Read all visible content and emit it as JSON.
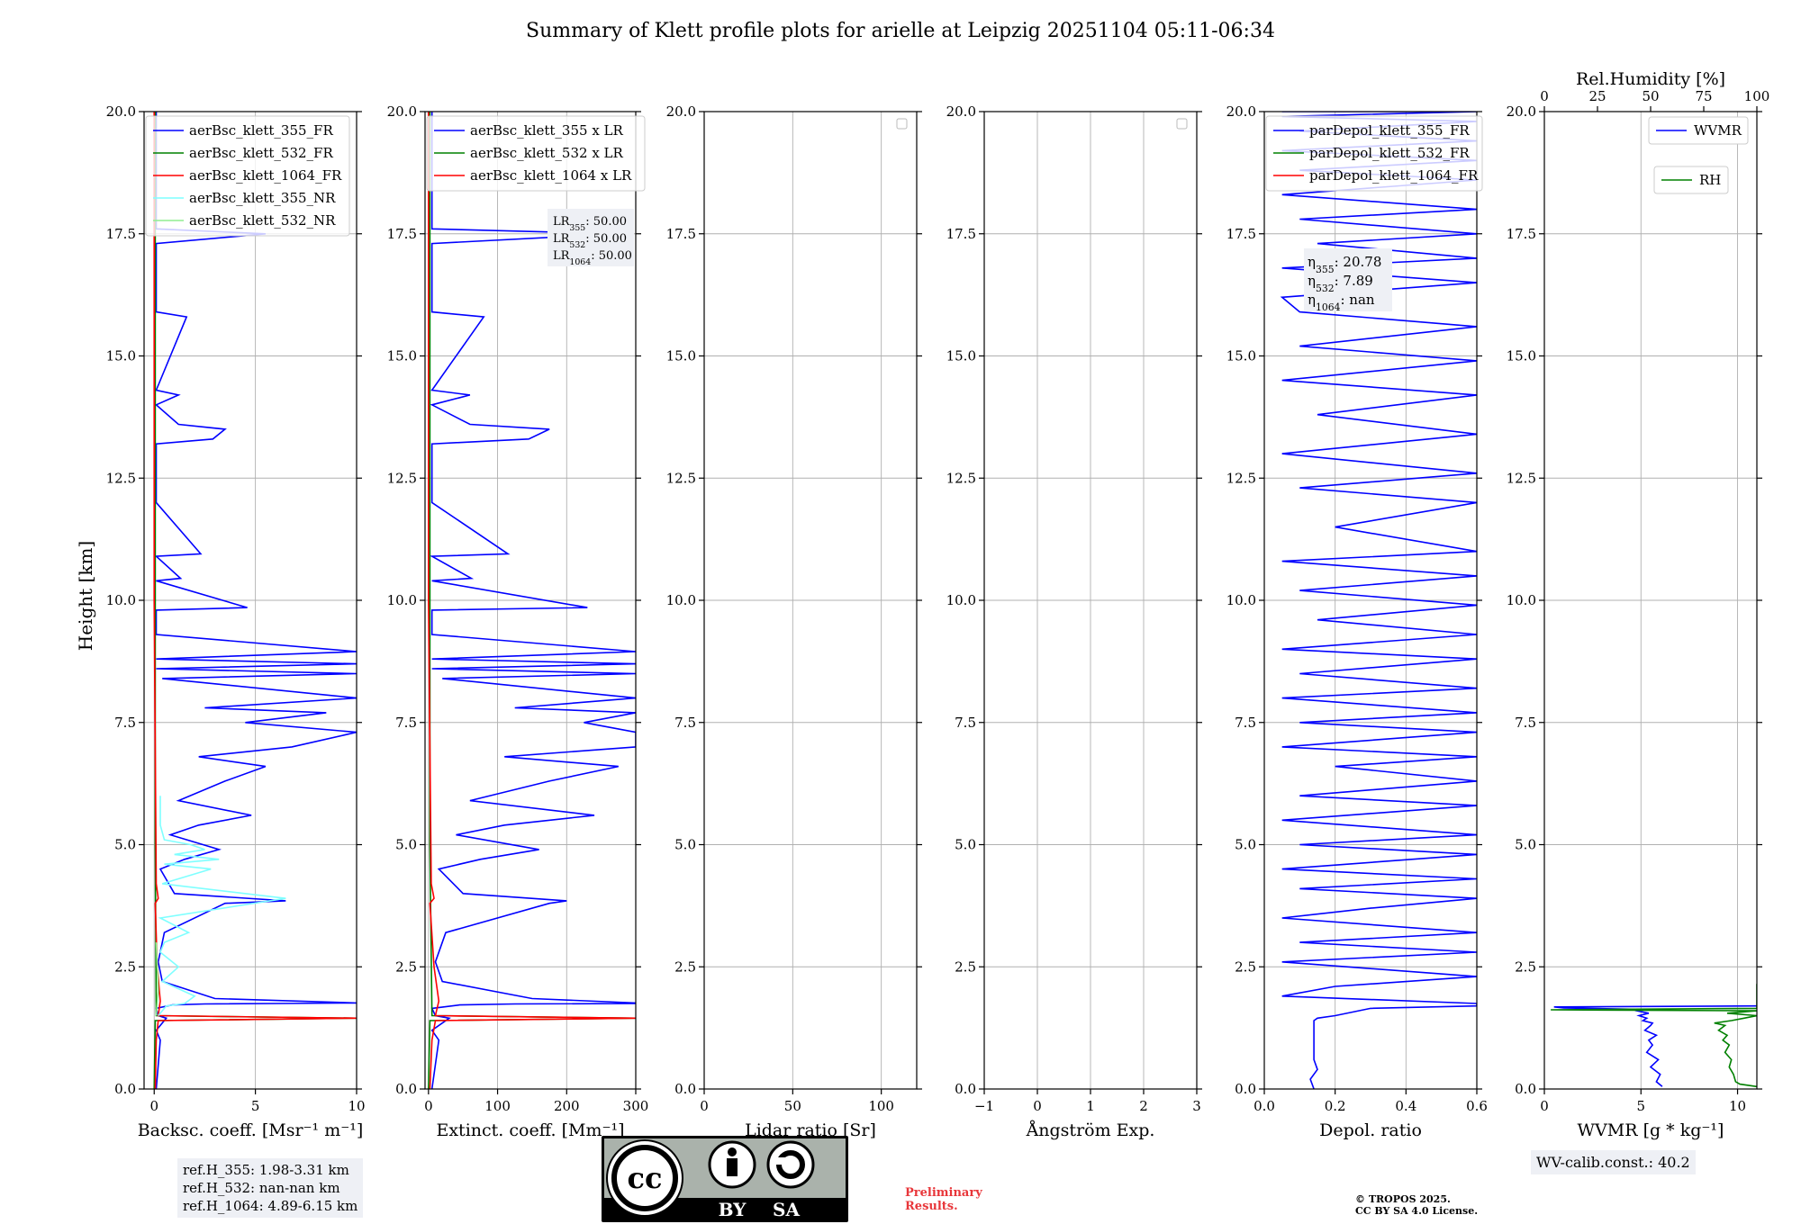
{
  "suptitle": "Summary of Klett profile plots for arielle at Leipzig 20251104 05:11-06:34",
  "colors": {
    "b355": "#0000ff",
    "b532": "#008000",
    "b1064": "#ff0000",
    "nr355": "#7fffff",
    "nr532": "#90ee90",
    "grid": "#b0b0b0",
    "rh": "#008000",
    "wvmr": "#0000ff",
    "box": "#eef0f5"
  },
  "ylabel": "Height [km]",
  "ytick_labels": [
    "0.0",
    "2.5",
    "5.0",
    "7.5",
    "10.0",
    "12.5",
    "15.0",
    "17.5",
    "20.0"
  ],
  "chart_data": [
    {
      "type": "line",
      "id": "bsc",
      "xlabel": "Backsc. coeff. [Msr⁻¹ m⁻¹]",
      "xlim": [
        -0.5,
        10
      ],
      "xticks": [
        0,
        5,
        10
      ],
      "ylim": [
        0,
        20
      ],
      "legend": [
        {
          "label": "aerBsc_klett_355_FR",
          "color": "#0000ff"
        },
        {
          "label": "aerBsc_klett_532_FR",
          "color": "#008000"
        },
        {
          "label": "aerBsc_klett_1064_FR",
          "color": "#ff0000"
        },
        {
          "label": "aerBsc_klett_355_NR",
          "color": "#7fffff"
        },
        {
          "label": "aerBsc_klett_532_NR",
          "color": "#90ee90"
        }
      ],
      "series": [
        {
          "name": "aerBsc_klett_355_FR",
          "color": "#0000ff",
          "x": [
            0.1,
            0.3,
            0.1,
            0.6,
            0.2,
            0.1,
            0.9,
            2.5,
            6,
            10,
            3,
            0.4,
            0.2,
            0.5,
            3.5,
            6.5,
            1,
            0.3,
            1.5,
            3.2,
            0.8,
            2.2,
            4.8,
            1.2,
            3.5,
            5.5,
            2.2,
            6.8,
            10,
            4.5,
            8.5,
            2.5,
            10,
            0.4,
            10,
            0.1,
            10,
            0.1,
            10,
            0.1,
            0.1,
            4.6,
            0.1,
            1.3,
            0.1,
            2.3,
            0.1,
            0.1,
            2.9,
            3.5,
            1.2,
            0.1,
            1.2,
            0.1,
            1.6,
            0.1,
            0.1,
            5.5,
            0.1,
            0.1
          ],
          "y": [
            0,
            1.0,
            1.2,
            1.45,
            1.5,
            1.65,
            1.72,
            1.74,
            1.75,
            1.76,
            1.85,
            2.2,
            2.6,
            3.2,
            3.8,
            3.85,
            4.0,
            4.5,
            4.7,
            4.9,
            5.2,
            5.4,
            5.6,
            5.9,
            6.3,
            6.6,
            6.8,
            7.0,
            7.3,
            7.5,
            7.7,
            7.8,
            8.0,
            8.4,
            8.5,
            8.6,
            8.7,
            8.8,
            8.95,
            9.3,
            9.8,
            9.85,
            10.4,
            10.45,
            10.9,
            10.95,
            12.0,
            13.2,
            13.3,
            13.5,
            13.6,
            14.0,
            14.2,
            14.3,
            15.8,
            15.9,
            17.3,
            17.5,
            17.6,
            20
          ]
        },
        {
          "name": "aerBsc_klett_532_FR",
          "color": "#008000",
          "x": [
            0,
            0.05,
            10,
            0.1,
            0.05,
            0.05
          ],
          "y": [
            0,
            1.4,
            1.45,
            1.5,
            5,
            20
          ]
        },
        {
          "name": "aerBsc_klett_1064_FR",
          "color": "#ff0000",
          "x": [
            0.05,
            0.1,
            0.2,
            10,
            0.2,
            0.3,
            0.15,
            0.05,
            0.2,
            0.1,
            0.0,
            0.0
          ],
          "y": [
            0,
            1.0,
            1.4,
            1.45,
            1.5,
            1.8,
            2.5,
            3.8,
            3.9,
            4.2,
            10,
            20
          ]
        },
        {
          "name": "aerBsc_klett_355_NR",
          "color": "#7fffff",
          "x": [
            0.2,
            0.6,
            1.5,
            2.0,
            0.4,
            1.2,
            0.3,
            0.5,
            1.7,
            0.3,
            6.5,
            0.4,
            2.8,
            0.5,
            3.2,
            1.0,
            2.5,
            1.8,
            0.5,
            0.3,
            0.3
          ],
          "y": [
            1.5,
            1.7,
            1.75,
            1.9,
            2.2,
            2.5,
            2.8,
            3.0,
            3.2,
            3.5,
            3.9,
            4.2,
            4.5,
            4.6,
            4.7,
            4.8,
            4.9,
            5.0,
            5.1,
            5.4,
            6.0
          ]
        },
        {
          "name": "aerBsc_klett_532_NR",
          "color": "#90ee90",
          "x": [
            0.1,
            0.2,
            0.1
          ],
          "y": [
            1.5,
            2.0,
            3.0
          ]
        }
      ]
    },
    {
      "type": "line",
      "id": "ext",
      "xlabel": "Extinct. coeff. [Mm⁻¹]",
      "xlim": [
        -5,
        300
      ],
      "xticks": [
        0,
        100,
        200,
        300
      ],
      "ylim": [
        0,
        20
      ],
      "legend": [
        {
          "label": "aerBsc_klett_355 x LR",
          "color": "#0000ff"
        },
        {
          "label": "aerBsc_klett_532 x LR",
          "color": "#008000"
        },
        {
          "label": "aerBsc_klett_1064 x LR",
          "color": "#ff0000"
        }
      ],
      "annotation": [
        "LR355: 50.00",
        "LR532: 50.00",
        "LR1064: 50.00"
      ],
      "series": [
        {
          "name": "aerBsc_klett_355 x LR",
          "color": "#0000ff",
          "x": [
            5,
            15,
            5,
            30,
            10,
            5,
            45,
            125,
            300,
            300,
            150,
            20,
            10,
            25,
            175,
            200,
            50,
            15,
            75,
            160,
            40,
            110,
            240,
            60,
            175,
            275,
            110,
            300,
            300,
            225,
            300,
            125,
            300,
            20,
            300,
            5,
            300,
            5,
            300,
            5,
            5,
            230,
            5,
            62,
            5,
            115,
            5,
            5,
            145,
            175,
            60,
            5,
            60,
            5,
            80,
            5,
            5,
            275,
            5,
            5
          ],
          "y": [
            0,
            1.0,
            1.2,
            1.45,
            1.5,
            1.65,
            1.72,
            1.74,
            1.75,
            1.76,
            1.85,
            2.2,
            2.6,
            3.2,
            3.8,
            3.85,
            4.0,
            4.5,
            4.7,
            4.9,
            5.2,
            5.4,
            5.6,
            5.9,
            6.3,
            6.6,
            6.8,
            7.0,
            7.3,
            7.5,
            7.7,
            7.8,
            8.0,
            8.4,
            8.5,
            8.6,
            8.7,
            8.8,
            8.95,
            9.3,
            9.8,
            9.85,
            10.4,
            10.45,
            10.9,
            10.95,
            12.0,
            13.2,
            13.3,
            13.5,
            13.6,
            14.0,
            14.2,
            14.3,
            15.8,
            15.9,
            17.3,
            17.5,
            17.6,
            20
          ]
        },
        {
          "name": "aerBsc_klett_532 x LR",
          "color": "#008000",
          "x": [
            0,
            2,
            300,
            5,
            2,
            2
          ],
          "y": [
            0,
            1.4,
            1.45,
            1.5,
            5,
            20
          ]
        },
        {
          "name": "aerBsc_klett_1064 x LR",
          "color": "#ff0000",
          "x": [
            2,
            5,
            10,
            300,
            10,
            15,
            8,
            2,
            8,
            4,
            0,
            0
          ],
          "y": [
            0,
            1.0,
            1.4,
            1.45,
            1.5,
            1.8,
            2.5,
            3.8,
            3.9,
            4.2,
            10,
            20
          ]
        }
      ]
    },
    {
      "type": "line",
      "id": "lr",
      "xlabel": "Lidar ratio [Sr]",
      "xlim": [
        0,
        120
      ],
      "xticks": [
        0,
        50,
        100
      ],
      "ylim": [
        0,
        20
      ],
      "legend": [],
      "series": []
    },
    {
      "type": "line",
      "id": "ang",
      "xlabel": "Ångström Exp.",
      "xlim": [
        -1,
        3
      ],
      "xticks": [
        -1,
        0,
        1,
        2,
        3
      ],
      "xtick_labels": [
        "−1",
        "0",
        "1",
        "2",
        "3"
      ],
      "ylim": [
        0,
        20
      ],
      "legend": [],
      "series": []
    },
    {
      "type": "line",
      "id": "depol",
      "xlabel": "Depol. ratio",
      "xlim": [
        0,
        0.6
      ],
      "xticks": [
        0,
        0.2,
        0.4,
        0.6
      ],
      "xtick_labels": [
        "0.0",
        "0.2",
        "0.4",
        "0.6"
      ],
      "ylim": [
        0,
        20
      ],
      "legend": [
        {
          "label": "parDepol_klett_355_FR",
          "color": "#0000ff"
        },
        {
          "label": "parDepol_klett_532_FR",
          "color": "#008000"
        },
        {
          "label": "parDepol_klett_1064_FR",
          "color": "#ff0000"
        }
      ],
      "annotation": [
        "η355: 20.78",
        "η532: 7.89",
        "η1064: nan"
      ],
      "series": [
        {
          "name": "parDepol_klett_355_FR",
          "color": "#0000ff",
          "x": [
            0.14,
            0.13,
            0.15,
            0.14,
            0.14,
            0.15,
            0.2,
            0.3,
            0.6,
            0.6,
            0.05,
            0.2,
            0.6,
            0.05,
            0.6,
            0.1,
            0.6,
            0.05,
            0.3,
            0.6,
            0.1,
            0.6,
            0.05,
            0.6,
            0.1,
            0.6,
            0.05,
            0.6,
            0.1,
            0.6,
            0.2,
            0.6,
            0.05,
            0.6,
            0.1,
            0.6,
            0.05,
            0.6,
            0.1,
            0.6,
            0.05,
            0.6,
            0.15,
            0.6,
            0.1,
            0.6,
            0.05,
            0.6,
            0.2,
            0.6,
            0.1,
            0.6,
            0.05,
            0.6,
            0.15,
            0.6,
            0.05,
            0.6,
            0.1,
            0.6,
            0.1,
            0.05,
            0.6,
            0.05,
            0.6,
            0.15,
            0.6,
            0.1,
            0.6,
            0.05,
            0.6,
            0.1,
            0.6,
            0.05,
            0.6,
            0.1,
            0.6,
            0.05,
            0.6,
            0.1,
            0.6,
            0.05,
            0.6,
            0.1,
            0.6,
            0.1,
            0.6
          ],
          "y": [
            0,
            0.2,
            0.4,
            0.6,
            1.4,
            1.45,
            1.5,
            1.65,
            1.7,
            1.75,
            1.9,
            2.1,
            2.3,
            2.6,
            2.8,
            3.0,
            3.2,
            3.5,
            3.7,
            3.9,
            4.1,
            4.3,
            4.5,
            4.8,
            5.0,
            5.2,
            5.5,
            5.8,
            6.0,
            6.3,
            6.6,
            6.8,
            7.0,
            7.3,
            7.5,
            7.7,
            8.0,
            8.2,
            8.5,
            8.8,
            9.0,
            9.3,
            9.6,
            9.9,
            10.2,
            10.5,
            10.8,
            11.0,
            11.5,
            12.0,
            12.3,
            12.6,
            13.0,
            13.4,
            13.8,
            14.2,
            14.5,
            14.9,
            15.2,
            15.6,
            15.9,
            16.2,
            16.5,
            16.8,
            17.0,
            17.3,
            17.5,
            17.8,
            18.0,
            18.3,
            18.6,
            18.8,
            19.0,
            19.2,
            19.4,
            19.6,
            19.8,
            19.9,
            20,
            20,
            20,
            20,
            20,
            20,
            20,
            20,
            20
          ]
        }
      ]
    },
    {
      "type": "line",
      "id": "wv",
      "xlabel": "WVMR [g * kg⁻¹]",
      "xlim": [
        0,
        11
      ],
      "xticks": [
        0,
        5,
        10
      ],
      "ylim": [
        0,
        20
      ],
      "top_xlabel": "Rel.Humidity [%]",
      "top_xlim": [
        0,
        100
      ],
      "top_xticks": [
        0,
        25,
        50,
        75,
        100
      ],
      "legend": [
        {
          "label": "WVMR",
          "color": "#0000ff"
        },
        {
          "label": "RH",
          "color": "#008000"
        }
      ],
      "series": [
        {
          "name": "WVMR",
          "color": "#0000ff",
          "axis": "bottom",
          "x": [
            6.1,
            5.8,
            6.0,
            5.5,
            5.9,
            5.3,
            5.6,
            5.4,
            5.8,
            5.2,
            5.5,
            5.6,
            5.1,
            5.3,
            4.9,
            5.4,
            4.8,
            5.0,
            1.0,
            0.5,
            11
          ],
          "y": [
            0.05,
            0.15,
            0.3,
            0.45,
            0.6,
            0.75,
            0.9,
            1.0,
            1.1,
            1.2,
            1.3,
            1.35,
            1.4,
            1.45,
            1.5,
            1.55,
            1.6,
            1.63,
            1.66,
            1.68,
            1.7
          ]
        },
        {
          "name": "RH",
          "color": "#008000",
          "axis": "top",
          "x": [
            100,
            92,
            90,
            89,
            87,
            88,
            85,
            87,
            84,
            86,
            82,
            85,
            80,
            88,
            94,
            100,
            86,
            100,
            3,
            100,
            100,
            100
          ],
          "y": [
            0.05,
            0.1,
            0.15,
            0.3,
            0.45,
            0.6,
            0.75,
            0.9,
            1.0,
            1.1,
            1.2,
            1.3,
            1.35,
            1.4,
            1.45,
            1.5,
            1.55,
            1.6,
            1.62,
            1.65,
            2.1,
            2.15
          ]
        }
      ]
    }
  ],
  "refbox": [
    "ref.H_355: 1.98-3.31 km",
    "ref.H_532: nan-nan km",
    "ref.H_1064: 4.89-6.15 km"
  ],
  "license_badge": {
    "cc": "cc",
    "by": "BY",
    "sa": "SA"
  },
  "preliminary": [
    "Preliminary",
    "Results."
  ],
  "copyright": [
    "© TROPOS 2025.",
    "CC BY SA 4.0 License."
  ],
  "wvcalib": "WV-calib.const.: 40.2"
}
